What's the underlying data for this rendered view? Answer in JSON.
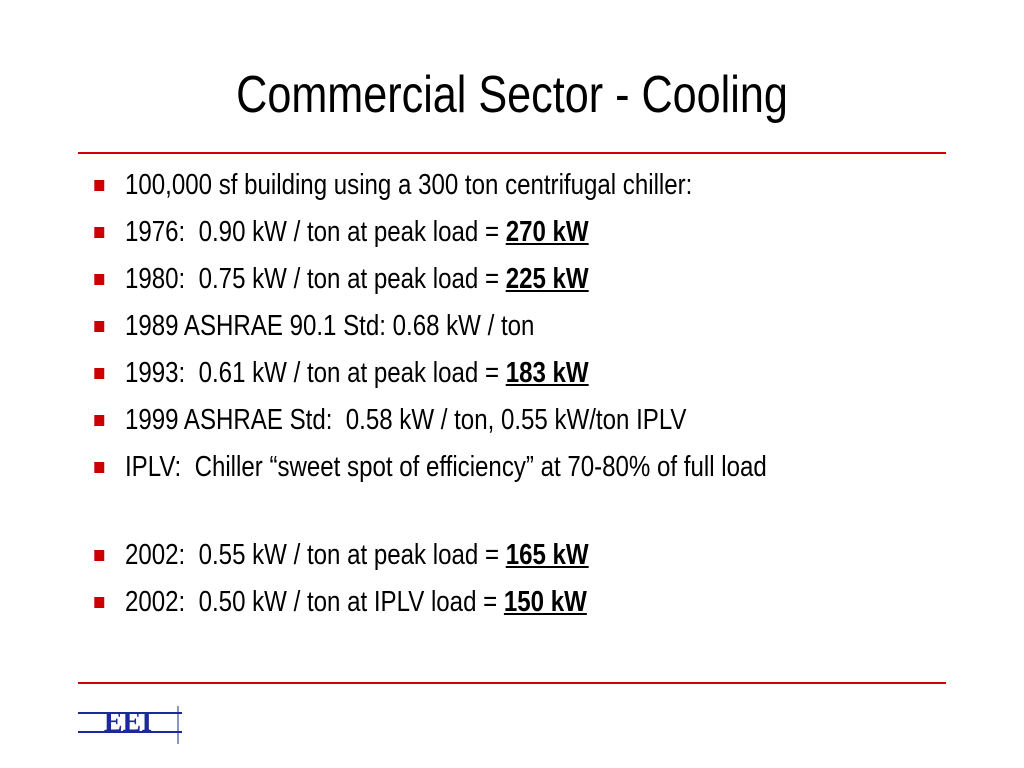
{
  "title": "Commercial Sector - Cooling",
  "bullet_groups": [
    [
      {
        "text": "100,000 sf building using a 300 ton centrifugal chiller:"
      },
      {
        "text": "1976:  0.90 kW / ton at peak load = ",
        "emphasis": "270 kW"
      },
      {
        "text": "1980:  0.75 kW / ton at peak load = ",
        "emphasis": "225 kW"
      },
      {
        "text": "1989 ASHRAE 90.1 Std: 0.68 kW / ton"
      },
      {
        "text": "1993:  0.61 kW / ton at peak load = ",
        "emphasis": "183 kW"
      },
      {
        "text": "1999 ASHRAE Std:  0.58 kW / ton, 0.55 kW/ton IPLV"
      },
      {
        "text": "IPLV:  Chiller “sweet spot of efficiency” at 70-80% of full load"
      }
    ],
    [
      {
        "text": "2002:  0.55 kW / ton at peak load = ",
        "emphasis": "165 kW"
      },
      {
        "text": "2002:  0.50 kW / ton at IPLV load = ",
        "emphasis": "150 kW"
      }
    ]
  ],
  "logo": "EEI"
}
